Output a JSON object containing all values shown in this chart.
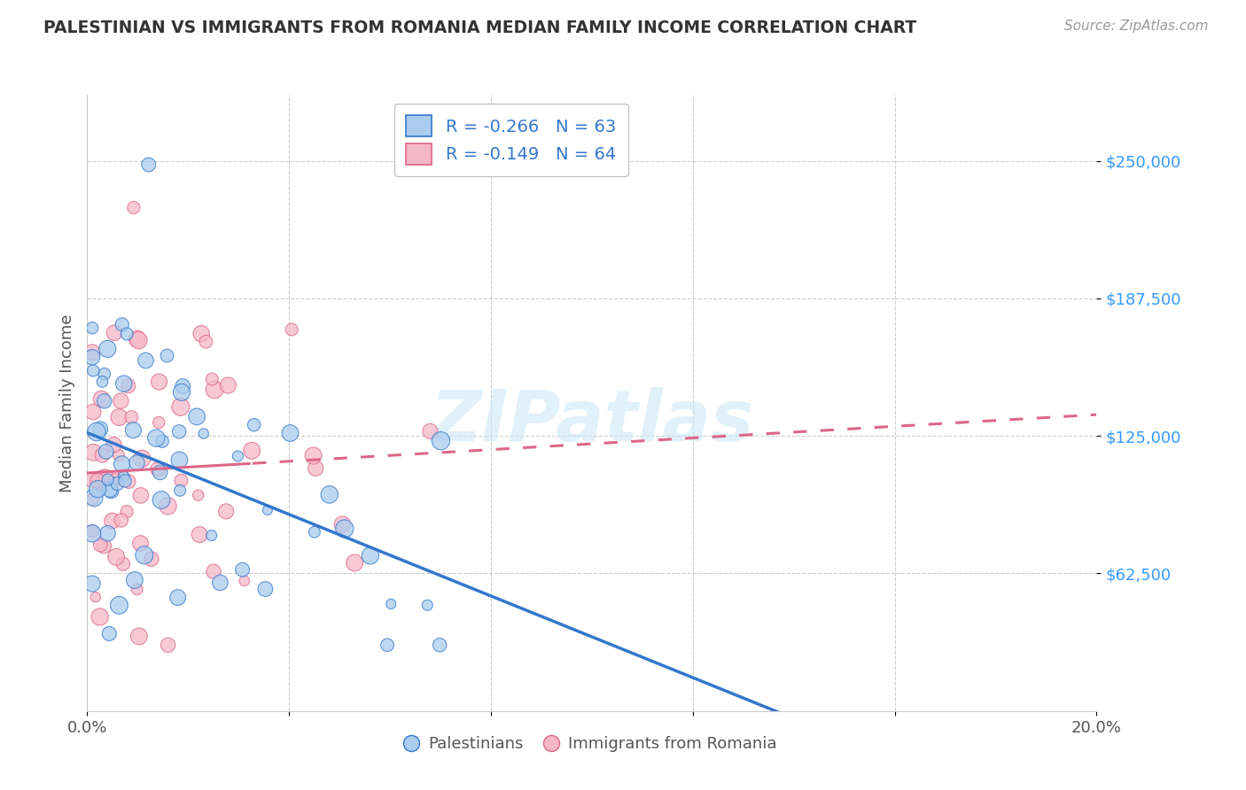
{
  "title": "PALESTINIAN VS IMMIGRANTS FROM ROMANIA MEDIAN FAMILY INCOME CORRELATION CHART",
  "source": "Source: ZipAtlas.com",
  "ylabel": "Median Family Income",
  "xmin": 0.0,
  "xmax": 0.2,
  "ymin": 0,
  "ymax": 280000,
  "yticks": [
    62500,
    125000,
    187500,
    250000
  ],
  "ytick_labels": [
    "$62,500",
    "$125,000",
    "$187,500",
    "$250,000"
  ],
  "xticks": [
    0.0,
    0.04,
    0.08,
    0.12,
    0.16,
    0.2
  ],
  "xtick_labels": [
    "0.0%",
    "",
    "",
    "",
    "",
    "20.0%"
  ],
  "blue_R": -0.266,
  "blue_N": 63,
  "pink_R": -0.149,
  "pink_N": 64,
  "blue_color": "#aaccee",
  "blue_line_color": "#3377cc",
  "pink_color": "#f5b8c8",
  "pink_line_color": "#dd6688",
  "watermark": "ZIPatlas",
  "legend_label_blue": "Palestinians",
  "legend_label_pink": "Immigrants from Romania",
  "background_color": "#ffffff",
  "grid_color": "#cccccc",
  "title_color": "#333333",
  "axis_label_color": "#555555",
  "ytick_color": "#3399ff",
  "legend_R_color": "#3377cc"
}
